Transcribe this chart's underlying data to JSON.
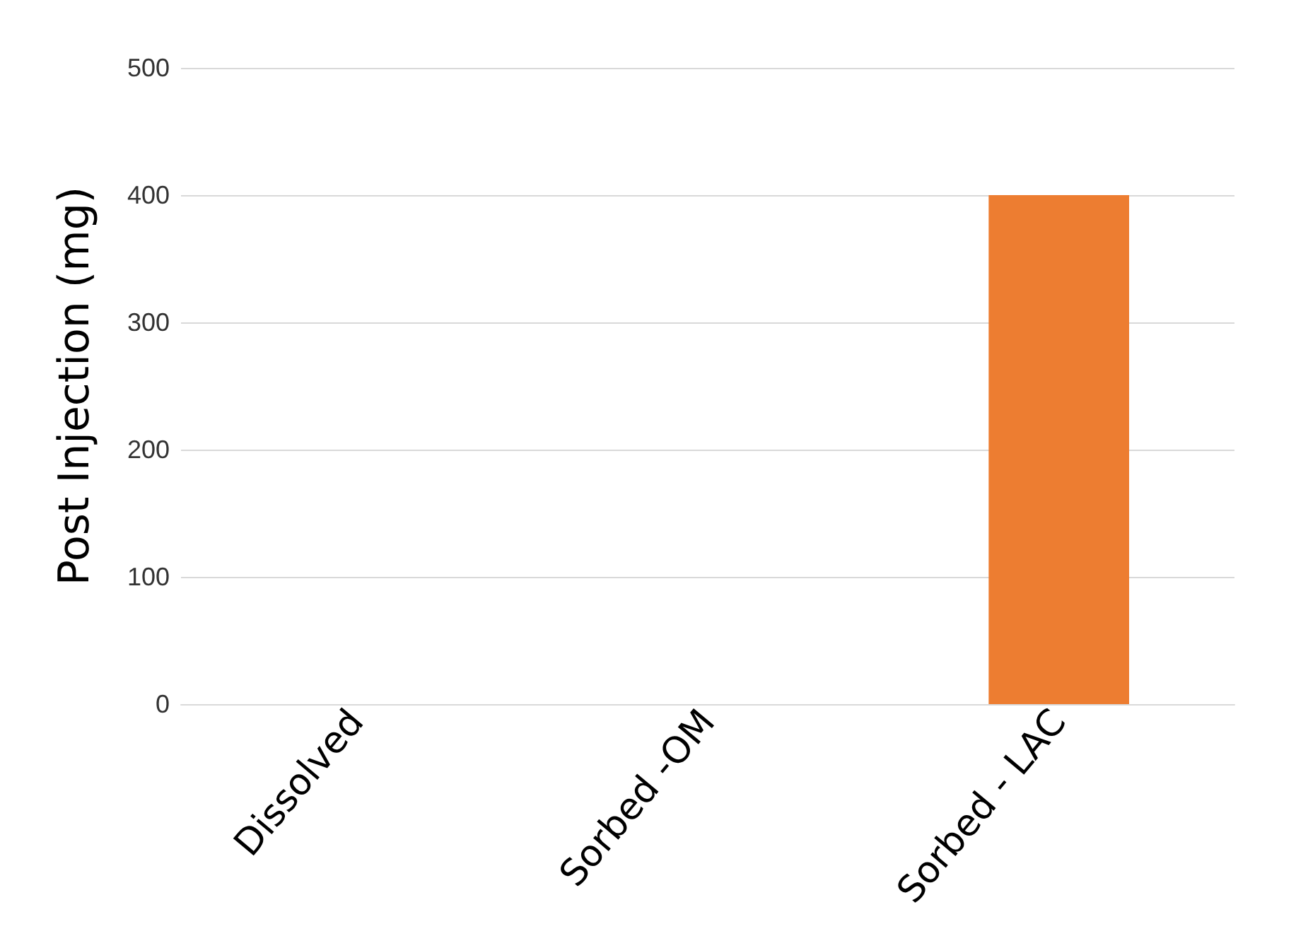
{
  "chart_data": {
    "type": "bar",
    "ylabel": "Post Injection (mg)",
    "categories": [
      "Dissolved",
      "Sorbed -OM",
      "Sorbed - LAC"
    ],
    "values": [
      0,
      0,
      400
    ],
    "color": "#ed7d31",
    "ylim": [
      0,
      500
    ],
    "yticks": [
      0,
      100,
      200,
      300,
      400,
      500
    ],
    "grid": "y"
  }
}
